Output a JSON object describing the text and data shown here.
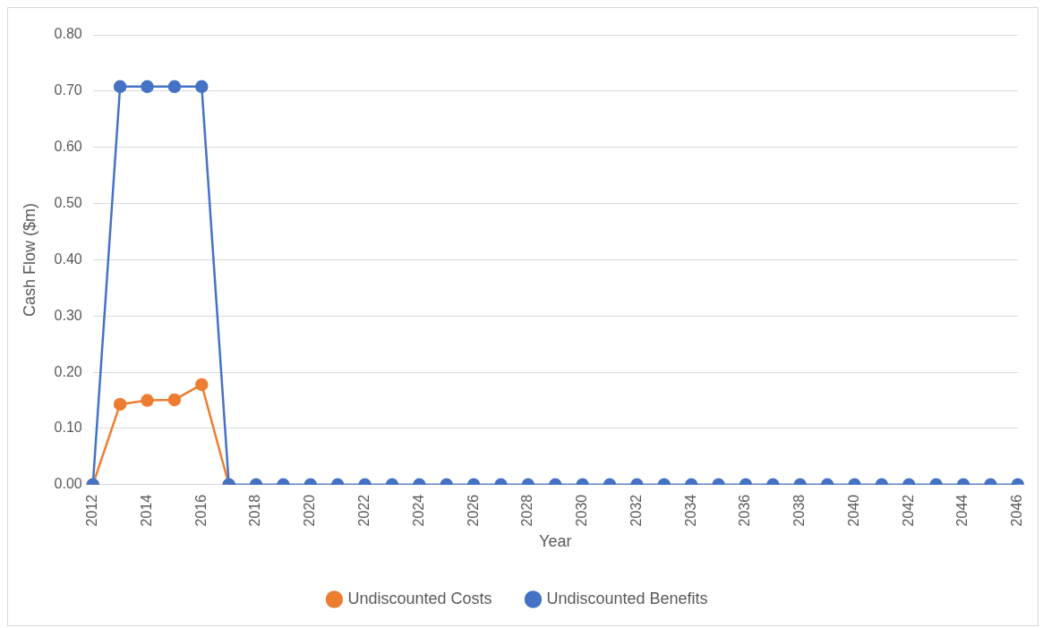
{
  "chart_data": {
    "type": "line",
    "xlabel": "Year",
    "ylabel": "Cash Flow ($m)",
    "categories": [
      "2012",
      null,
      "2014",
      null,
      "2016",
      null,
      "2018",
      null,
      "2020",
      null,
      "2022",
      null,
      "2024",
      null,
      "2026",
      null,
      "2028",
      null,
      "2030",
      null,
      "2032",
      null,
      "2034",
      null,
      "2036",
      null,
      "2038",
      null,
      "2040",
      null,
      "2042",
      null,
      "2044",
      null,
      "2046"
    ],
    "series": [
      {
        "name": "Undiscounted Costs",
        "color": "#ed7d31",
        "values": [
          0,
          0.143,
          0.15,
          0.151,
          0.178,
          0,
          null,
          null,
          null,
          null,
          null,
          null,
          null,
          null,
          null,
          null,
          null,
          null,
          null,
          null,
          null,
          null,
          null,
          null,
          null,
          null,
          null,
          null,
          null,
          null,
          null,
          null,
          null,
          null,
          null
        ]
      },
      {
        "name": "Undiscounted Benefits",
        "color": "#4472c4",
        "values": [
          0,
          0.708,
          0.708,
          0.708,
          0.708,
          0,
          0,
          0,
          0,
          0,
          0,
          0,
          0,
          0,
          0,
          0,
          0,
          0,
          0,
          0,
          0,
          0,
          0,
          0,
          0,
          0,
          0,
          0,
          0,
          0,
          0,
          0,
          0,
          0,
          0
        ]
      }
    ],
    "ylim": [
      0,
      0.8
    ],
    "yticks": [
      {
        "value": 0,
        "label": "0.00"
      },
      {
        "value": 0.1,
        "label": "0.10"
      },
      {
        "value": 0.2,
        "label": "0.20"
      },
      {
        "value": 0.3,
        "label": "0.30"
      },
      {
        "value": 0.4,
        "label": "0.40"
      },
      {
        "value": 0.5,
        "label": "0.50"
      },
      {
        "value": 0.6,
        "label": "0.60"
      },
      {
        "value": 0.7,
        "label": "0.70"
      },
      {
        "value": 0.8,
        "label": "0.80"
      }
    ],
    "grid": "y",
    "legend": "bottom",
    "marker": "circle",
    "line_style": "solid"
  }
}
